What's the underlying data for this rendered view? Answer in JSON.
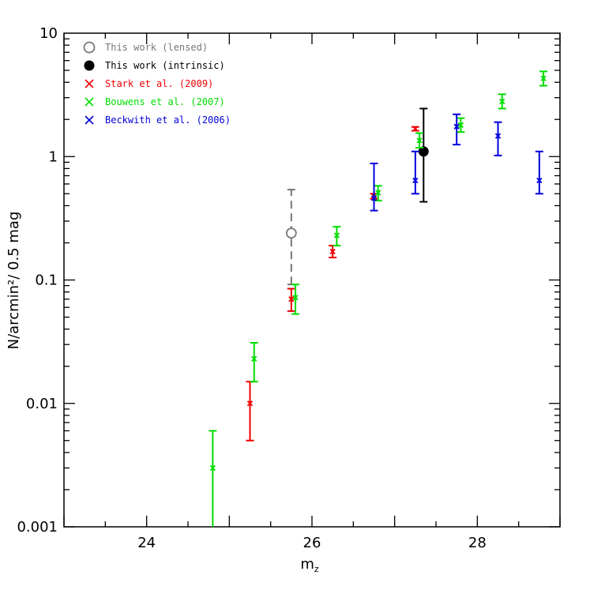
{
  "chart_data": {
    "type": "scatter",
    "title": "",
    "xlabel": "m",
    "xlabel_sub": "z",
    "ylabel": "N/arcmin²/ 0.5 mag",
    "xlim": [
      23,
      29
    ],
    "ylim": [
      0.001,
      10
    ],
    "y_scale": "log",
    "grid": false,
    "legend_position": "top-left",
    "x_ticks": [
      {
        "value": 24,
        "label": "24"
      },
      {
        "value": 26,
        "label": "26"
      },
      {
        "value": 28,
        "label": "28"
      }
    ],
    "y_ticks": [
      {
        "value": 0.001,
        "label": "0.001"
      },
      {
        "value": 0.01,
        "label": "0.01"
      },
      {
        "value": 0.1,
        "label": "0.1"
      },
      {
        "value": 1,
        "label": "1"
      },
      {
        "value": 10,
        "label": "10"
      }
    ],
    "series": [
      {
        "name": "This work (lensed)",
        "color": "#777777",
        "marker": "open-circle",
        "dashed": true,
        "points": [
          {
            "x": 25.75,
            "y": 0.24,
            "lo": 0.092,
            "hi": 0.54
          }
        ]
      },
      {
        "name": "This work (intrinsic)",
        "color": "#000000",
        "marker": "filled-circle",
        "dashed": false,
        "points": [
          {
            "x": 27.35,
            "y": 1.1,
            "lo": 0.43,
            "hi": 2.45
          }
        ]
      },
      {
        "name": "Stark et al. (2009)",
        "color": "#ee0000",
        "marker": "cross",
        "dashed": false,
        "points": [
          {
            "x": 25.25,
            "y": 0.01,
            "lo": 0.005,
            "hi": 0.015
          },
          {
            "x": 25.75,
            "y": 0.07,
            "lo": 0.056,
            "hi": 0.085
          },
          {
            "x": 26.25,
            "y": 0.17,
            "lo": 0.152,
            "hi": 0.19
          },
          {
            "x": 26.75,
            "y": 0.48,
            "lo": 0.455,
            "hi": 0.5
          },
          {
            "x": 27.25,
            "y": 1.68,
            "lo": 1.62,
            "hi": 1.74
          }
        ]
      },
      {
        "name": "Bouwens et al. (2007)",
        "color": "#00dd00",
        "marker": "cross",
        "dashed": false,
        "points": [
          {
            "x": 24.8,
            "y": 0.003,
            "lo": 0.0008,
            "hi": 0.006
          },
          {
            "x": 25.3,
            "y": 0.023,
            "lo": 0.015,
            "hi": 0.031
          },
          {
            "x": 25.8,
            "y": 0.072,
            "lo": 0.053,
            "hi": 0.092
          },
          {
            "x": 26.3,
            "y": 0.23,
            "lo": 0.19,
            "hi": 0.27
          },
          {
            "x": 26.8,
            "y": 0.51,
            "lo": 0.44,
            "hi": 0.58
          },
          {
            "x": 27.3,
            "y": 1.35,
            "lo": 1.18,
            "hi": 1.55
          },
          {
            "x": 27.8,
            "y": 1.8,
            "lo": 1.58,
            "hi": 2.05
          },
          {
            "x": 28.3,
            "y": 2.8,
            "lo": 2.45,
            "hi": 3.2
          },
          {
            "x": 28.8,
            "y": 4.3,
            "lo": 3.75,
            "hi": 4.9
          }
        ]
      },
      {
        "name": "Beckwith et al. (2006)",
        "color": "#0000dd",
        "marker": "cross",
        "dashed": false,
        "points": [
          {
            "x": 26.75,
            "y": 0.46,
            "lo": 0.365,
            "hi": 0.88
          },
          {
            "x": 27.25,
            "y": 0.64,
            "lo": 0.5,
            "hi": 1.1
          },
          {
            "x": 27.75,
            "y": 1.75,
            "lo": 1.25,
            "hi": 2.2
          },
          {
            "x": 28.25,
            "y": 1.47,
            "lo": 1.02,
            "hi": 1.9
          },
          {
            "x": 28.75,
            "y": 0.64,
            "lo": 0.5,
            "hi": 1.1
          }
        ]
      }
    ]
  }
}
